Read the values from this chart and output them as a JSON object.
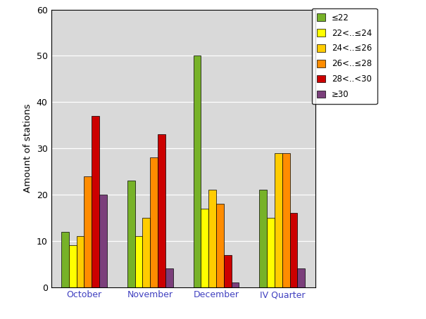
{
  "categories": [
    "October",
    "November",
    "December",
    "IV Quarter"
  ],
  "series": [
    {
      "label": "≤22",
      "color": "#77b228",
      "values": [
        12,
        23,
        50,
        21
      ]
    },
    {
      "label": "22<..≤24",
      "color": "#ffff00",
      "values": [
        9,
        11,
        17,
        15
      ]
    },
    {
      "label": "24<..≤26",
      "color": "#ffcc00",
      "values": [
        11,
        15,
        21,
        29
      ]
    },
    {
      "label": "26<..≤28",
      "color": "#ff8c00",
      "values": [
        24,
        28,
        18,
        29
      ]
    },
    {
      "label": "28<..<30",
      "color": "#cc0000",
      "values": [
        37,
        33,
        7,
        16
      ]
    },
    {
      "label": "≥30",
      "color": "#7b3f7b",
      "values": [
        20,
        4,
        1,
        4
      ]
    }
  ],
  "ylabel": "Amount of stations",
  "ylim": [
    0,
    60
  ],
  "yticks": [
    0,
    10,
    20,
    30,
    40,
    50,
    60
  ],
  "figure_bg_color": "#ffffff",
  "plot_bg_color": "#d9d9d9",
  "legend_fontsize": 8.5,
  "axis_fontsize": 9.5,
  "tick_fontsize": 9,
  "bar_width": 0.115,
  "figsize": [
    6.05,
    4.54
  ],
  "dpi": 100
}
